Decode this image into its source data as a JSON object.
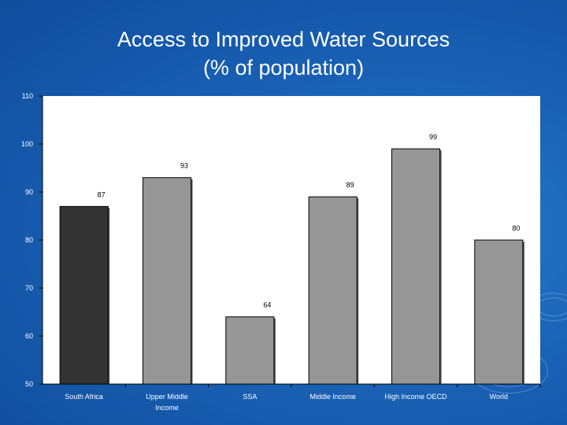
{
  "slide": {
    "title_line1": "Access to Improved Water Sources",
    "title_line2": "(% of population)"
  },
  "colors": {
    "background": "#1a62b6",
    "plot_area": "#ffffff",
    "bar_highlight": "#333333",
    "bar_default": "#969696",
    "title_text": "#ffffff"
  },
  "chart_data": {
    "type": "bar",
    "title": "Access to Improved Water Sources (% of population)",
    "xlabel": "",
    "ylabel": "",
    "categories": [
      "South Africa",
      "Upper Middle Income",
      "SSA",
      "Middle Income",
      "High Income OECD",
      "World"
    ],
    "values": [
      87,
      93,
      64,
      89,
      99,
      80
    ],
    "data_labels": [
      "87",
      "93",
      "64",
      "89",
      "99",
      "80"
    ],
    "highlight_index": 0,
    "ylim": [
      50,
      110
    ],
    "yticks": [
      50,
      60,
      70,
      80,
      90,
      100,
      110
    ],
    "grid": false,
    "legend": "none"
  }
}
